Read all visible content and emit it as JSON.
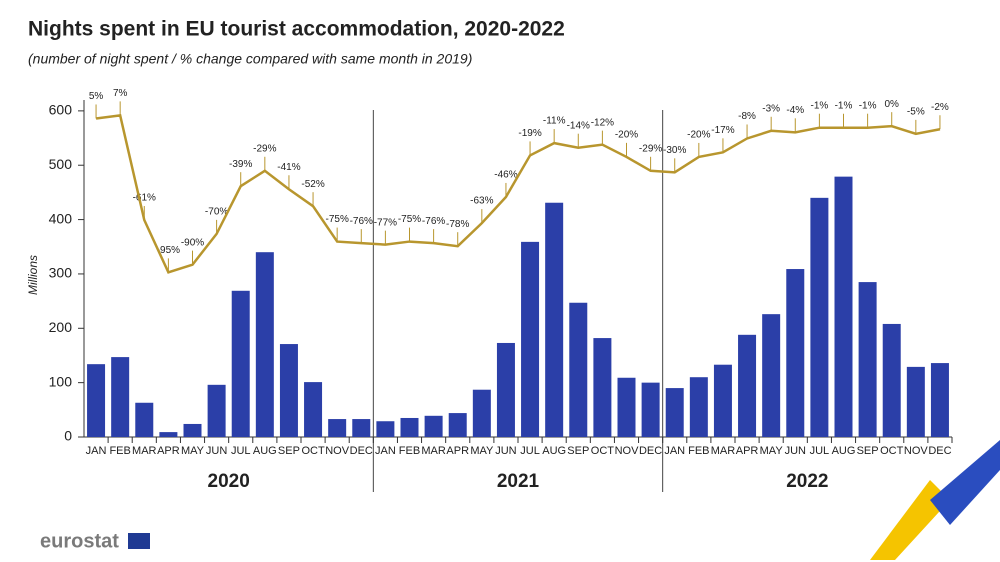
{
  "chart_data": {
    "type": "bar",
    "title": "Nights spent in EU tourist accommodation, 2020-2022",
    "subtitle": "(number of night spent / % change compared with same month in 2019)",
    "y_label": "Millions",
    "source": "eurostat",
    "categories": [
      "JAN",
      "FEB",
      "MAR",
      "APR",
      "MAY",
      "JUN",
      "JUL",
      "AUG",
      "SEP",
      "OCT",
      "NOV",
      "DEC",
      "JAN",
      "FEB",
      "MAR",
      "APR",
      "MAY",
      "JUN",
      "JUL",
      "AUG",
      "SEP",
      "OCT",
      "NOV",
      "DEC",
      "JAN",
      "FEB",
      "MAR",
      "APR",
      "MAY",
      "JUN",
      "JUL",
      "AUG",
      "SEP",
      "OCT",
      "NOV",
      "DEC"
    ],
    "groups": [
      "2020",
      "2021",
      "2022"
    ],
    "ylim": [
      0,
      620
    ],
    "yticks": [
      0,
      100,
      200,
      300,
      400,
      500,
      600
    ],
    "y2lim": [
      -202,
      17
    ],
    "series": [
      {
        "type": "bar",
        "color": "#2b3fa8",
        "values": [
          134,
          147,
          63,
          9,
          24,
          96,
          269,
          340,
          171,
          101,
          33,
          33,
          29,
          35,
          39,
          44,
          87,
          173,
          359,
          431,
          247,
          182,
          109,
          100,
          90,
          110,
          133,
          188,
          226,
          309,
          440,
          479,
          285,
          208,
          129,
          136
        ]
      },
      {
        "type": "line",
        "axis": "y2",
        "color": "#b8962e",
        "values": [
          5,
          7,
          -61,
          -95,
          -90,
          -70,
          -39,
          -29,
          -41,
          -52,
          -75,
          -76,
          -77,
          -75,
          -76,
          -78,
          -63,
          -46,
          -19,
          -11,
          -14,
          -12,
          -20,
          -29,
          -30,
          -20,
          -17,
          -8,
          -3,
          -4,
          -1,
          -1,
          -1,
          0,
          -5,
          -2
        ],
        "value_labels": [
          "5%",
          "7%",
          "-61%",
          "-95%",
          "-90%",
          "-70%",
          "-39%",
          "-29%",
          "-41%",
          "-52%",
          "-75%",
          "-76%",
          "-77%",
          "-75%",
          "-76%",
          "-78%",
          "-63%",
          "-46%",
          "-19%",
          "-11%",
          "-14%",
          "-12%",
          "-20%",
          "-29%",
          "-30%",
          "-20%",
          "-17%",
          "-8%",
          "-3%",
          "-4%",
          "-1%",
          "-1%",
          "-1%",
          "0%",
          "-5%",
          "-2%"
        ]
      }
    ]
  }
}
